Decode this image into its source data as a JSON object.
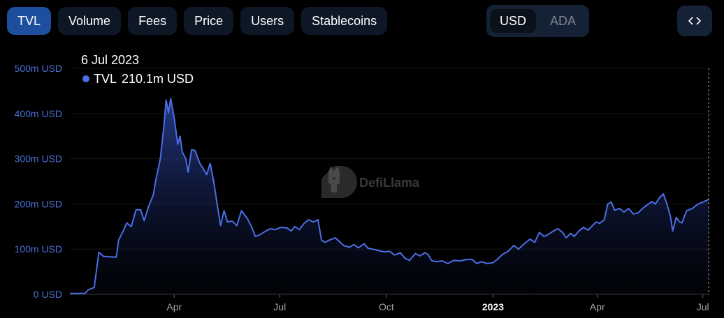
{
  "tabs": [
    {
      "label": "TVL",
      "active": true
    },
    {
      "label": "Volume",
      "active": false
    },
    {
      "label": "Fees",
      "active": false
    },
    {
      "label": "Price",
      "active": false
    },
    {
      "label": "Users",
      "active": false
    },
    {
      "label": "Stablecoins",
      "active": false
    }
  ],
  "currency": {
    "options": [
      "USD",
      "ADA"
    ],
    "selected": "USD"
  },
  "embed_icon": "code-brackets-icon",
  "watermark": {
    "text": "DefiLlama",
    "icon": "llama-logo-icon"
  },
  "tooltip": {
    "date": "6 Jul 2023",
    "series": "TVL",
    "value": "210.1m USD",
    "color": "#4c6ee6"
  },
  "colors": {
    "line": "#4c6ee6",
    "accent": "#1d4f9e"
  },
  "chart_data": {
    "type": "area",
    "series": [
      {
        "name": "TVL"
      }
    ],
    "y_ticks": [
      "0 USD",
      "100m USD",
      "200m USD",
      "300m USD",
      "400m USD",
      "500m USD"
    ],
    "ylim": [
      0,
      500
    ],
    "x_ticks": [
      {
        "label": "Apr",
        "date": "2022-04-01",
        "bold": false
      },
      {
        "label": "Jul",
        "date": "2022-07-01",
        "bold": false
      },
      {
        "label": "Oct",
        "date": "2022-10-01",
        "bold": false
      },
      {
        "label": "2023",
        "date": "2023-01-01",
        "bold": true
      },
      {
        "label": "Apr",
        "date": "2023-04-01",
        "bold": false
      },
      {
        "label": "Jul",
        "date": "2023-07-01",
        "bold": false
      }
    ],
    "grid": "horizontal",
    "points": [
      [
        "2022-01-01",
        2
      ],
      [
        "2022-01-07",
        2
      ],
      [
        "2022-01-14",
        2
      ],
      [
        "2022-01-17",
        10
      ],
      [
        "2022-01-22",
        15
      ],
      [
        "2022-01-26",
        93
      ],
      [
        "2022-01-30",
        84
      ],
      [
        "2022-02-05",
        83
      ],
      [
        "2022-02-10",
        82
      ],
      [
        "2022-02-12",
        120
      ],
      [
        "2022-02-16",
        140
      ],
      [
        "2022-02-19",
        158
      ],
      [
        "2022-02-23",
        150
      ],
      [
        "2022-02-27",
        187
      ],
      [
        "2022-03-03",
        187
      ],
      [
        "2022-03-06",
        163
      ],
      [
        "2022-03-10",
        195
      ],
      [
        "2022-03-14",
        220
      ],
      [
        "2022-03-16",
        252
      ],
      [
        "2022-03-20",
        300
      ],
      [
        "2022-03-23",
        370
      ],
      [
        "2022-03-25",
        430
      ],
      [
        "2022-03-27",
        402
      ],
      [
        "2022-03-29",
        433
      ],
      [
        "2022-04-01",
        390
      ],
      [
        "2022-04-04",
        332
      ],
      [
        "2022-04-06",
        350
      ],
      [
        "2022-04-08",
        315
      ],
      [
        "2022-04-11",
        300
      ],
      [
        "2022-04-13",
        270
      ],
      [
        "2022-04-16",
        320
      ],
      [
        "2022-04-19",
        318
      ],
      [
        "2022-04-23",
        290
      ],
      [
        "2022-04-26",
        278
      ],
      [
        "2022-04-29",
        265
      ],
      [
        "2022-05-02",
        290
      ],
      [
        "2022-05-05",
        250
      ],
      [
        "2022-05-08",
        200
      ],
      [
        "2022-05-11",
        152
      ],
      [
        "2022-05-14",
        185
      ],
      [
        "2022-05-17",
        160
      ],
      [
        "2022-05-21",
        162
      ],
      [
        "2022-05-25",
        152
      ],
      [
        "2022-05-29",
        185
      ],
      [
        "2022-06-03",
        168
      ],
      [
        "2022-06-07",
        148
      ],
      [
        "2022-06-10",
        128
      ],
      [
        "2022-06-14",
        132
      ],
      [
        "2022-06-19",
        140
      ],
      [
        "2022-06-23",
        145
      ],
      [
        "2022-06-27",
        143
      ],
      [
        "2022-07-02",
        148
      ],
      [
        "2022-07-07",
        147
      ],
      [
        "2022-07-11",
        140
      ],
      [
        "2022-07-14",
        150
      ],
      [
        "2022-07-18",
        143
      ],
      [
        "2022-07-22",
        157
      ],
      [
        "2022-07-26",
        165
      ],
      [
        "2022-07-30",
        160
      ],
      [
        "2022-08-03",
        165
      ],
      [
        "2022-08-06",
        120
      ],
      [
        "2022-08-09",
        115
      ],
      [
        "2022-08-13",
        120
      ],
      [
        "2022-08-18",
        125
      ],
      [
        "2022-08-21",
        118
      ],
      [
        "2022-08-25",
        108
      ],
      [
        "2022-08-30",
        104
      ],
      [
        "2022-09-03",
        110
      ],
      [
        "2022-09-07",
        103
      ],
      [
        "2022-09-12",
        112
      ],
      [
        "2022-09-15",
        102
      ],
      [
        "2022-09-19",
        100
      ],
      [
        "2022-09-24",
        97
      ],
      [
        "2022-09-29",
        94
      ],
      [
        "2022-10-04",
        95
      ],
      [
        "2022-10-08",
        87
      ],
      [
        "2022-10-13",
        92
      ],
      [
        "2022-10-17",
        80
      ],
      [
        "2022-10-21",
        75
      ],
      [
        "2022-10-26",
        90
      ],
      [
        "2022-10-30",
        85
      ],
      [
        "2022-11-03",
        92
      ],
      [
        "2022-11-06",
        88
      ],
      [
        "2022-11-09",
        75
      ],
      [
        "2022-11-13",
        72
      ],
      [
        "2022-11-18",
        74
      ],
      [
        "2022-11-23",
        68
      ],
      [
        "2022-11-28",
        75
      ],
      [
        "2022-12-04",
        74
      ],
      [
        "2022-12-09",
        77
      ],
      [
        "2022-12-14",
        77
      ],
      [
        "2022-12-18",
        68
      ],
      [
        "2022-12-22",
        72
      ],
      [
        "2022-12-27",
        68
      ],
      [
        "2023-01-01",
        70
      ],
      [
        "2023-01-05",
        78
      ],
      [
        "2023-01-09",
        88
      ],
      [
        "2023-01-14",
        95
      ],
      [
        "2023-01-19",
        108
      ],
      [
        "2023-01-23",
        100
      ],
      [
        "2023-01-28",
        112
      ],
      [
        "2023-02-02",
        122
      ],
      [
        "2023-02-06",
        115
      ],
      [
        "2023-02-10",
        137
      ],
      [
        "2023-02-14",
        128
      ],
      [
        "2023-02-18",
        133
      ],
      [
        "2023-02-22",
        140
      ],
      [
        "2023-02-26",
        145
      ],
      [
        "2023-03-02",
        137
      ],
      [
        "2023-03-05",
        125
      ],
      [
        "2023-03-09",
        135
      ],
      [
        "2023-03-12",
        128
      ],
      [
        "2023-03-16",
        140
      ],
      [
        "2023-03-20",
        148
      ],
      [
        "2023-03-24",
        142
      ],
      [
        "2023-03-27",
        150
      ],
      [
        "2023-03-31",
        160
      ],
      [
        "2023-04-03",
        157
      ],
      [
        "2023-04-07",
        165
      ],
      [
        "2023-04-10",
        200
      ],
      [
        "2023-04-13",
        204
      ],
      [
        "2023-04-16",
        186
      ],
      [
        "2023-04-20",
        190
      ],
      [
        "2023-04-24",
        182
      ],
      [
        "2023-04-28",
        190
      ],
      [
        "2023-05-02",
        178
      ],
      [
        "2023-05-06",
        180
      ],
      [
        "2023-05-10",
        190
      ],
      [
        "2023-05-14",
        198
      ],
      [
        "2023-05-18",
        205
      ],
      [
        "2023-05-21",
        200
      ],
      [
        "2023-05-25",
        215
      ],
      [
        "2023-05-28",
        222
      ],
      [
        "2023-05-31",
        200
      ],
      [
        "2023-06-03",
        173
      ],
      [
        "2023-06-05",
        140
      ],
      [
        "2023-06-08",
        170
      ],
      [
        "2023-06-11",
        160
      ],
      [
        "2023-06-13",
        158
      ],
      [
        "2023-06-17",
        185
      ],
      [
        "2023-06-22",
        190
      ],
      [
        "2023-06-27",
        200
      ],
      [
        "2023-07-02",
        205
      ],
      [
        "2023-07-06",
        210
      ]
    ]
  }
}
